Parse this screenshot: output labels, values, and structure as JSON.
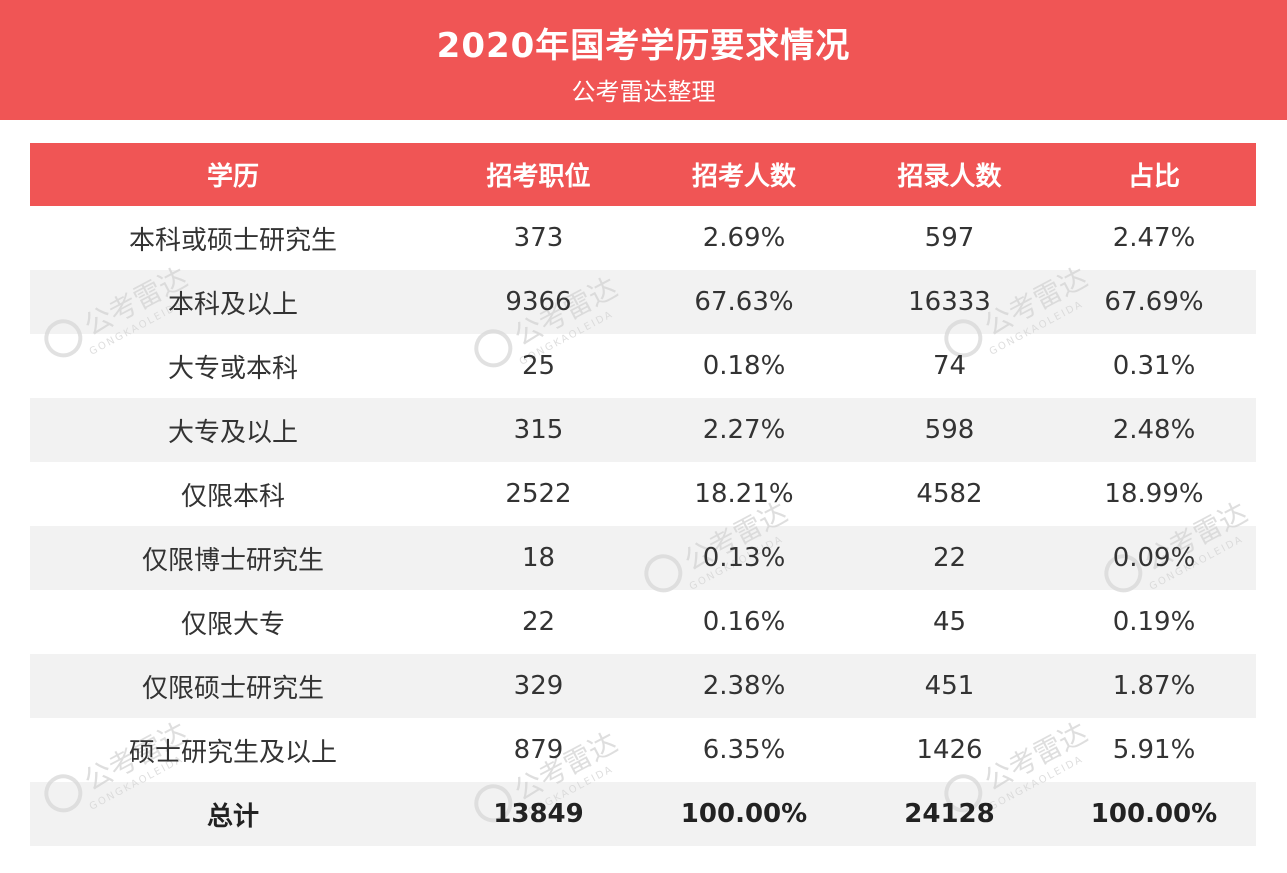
{
  "banner": {
    "title": "2020年国考学历要求情况",
    "subtitle": "公考雷达整理"
  },
  "colors": {
    "accent": "#f05555",
    "stripe": "#f2f2f2"
  },
  "watermark": {
    "text": "公考雷达",
    "sub": "GONGKAOLEIDA"
  },
  "table": {
    "headers": [
      "学历",
      "招考职位",
      "招考人数",
      "招录人数",
      "占比"
    ],
    "rows": [
      [
        "本科或硕士研究生",
        "373",
        "2.69%",
        "597",
        "2.47%"
      ],
      [
        "本科及以上",
        "9366",
        "67.63%",
        "16333",
        "67.69%"
      ],
      [
        "大专或本科",
        "25",
        "0.18%",
        "74",
        "0.31%"
      ],
      [
        "大专及以上",
        "315",
        "2.27%",
        "598",
        "2.48%"
      ],
      [
        "仅限本科",
        "2522",
        "18.21%",
        "4582",
        "18.99%"
      ],
      [
        "仅限博士研究生",
        "18",
        "0.13%",
        "22",
        "0.09%"
      ],
      [
        "仅限大专",
        "22",
        "0.16%",
        "45",
        "0.19%"
      ],
      [
        "仅限硕士研究生",
        "329",
        "2.38%",
        "451",
        "1.87%"
      ],
      [
        "硕士研究生及以上",
        "879",
        "6.35%",
        "1426",
        "5.91%"
      ]
    ],
    "total": [
      "总计",
      "13849",
      "100.00%",
      "24128",
      "100.00%"
    ]
  }
}
